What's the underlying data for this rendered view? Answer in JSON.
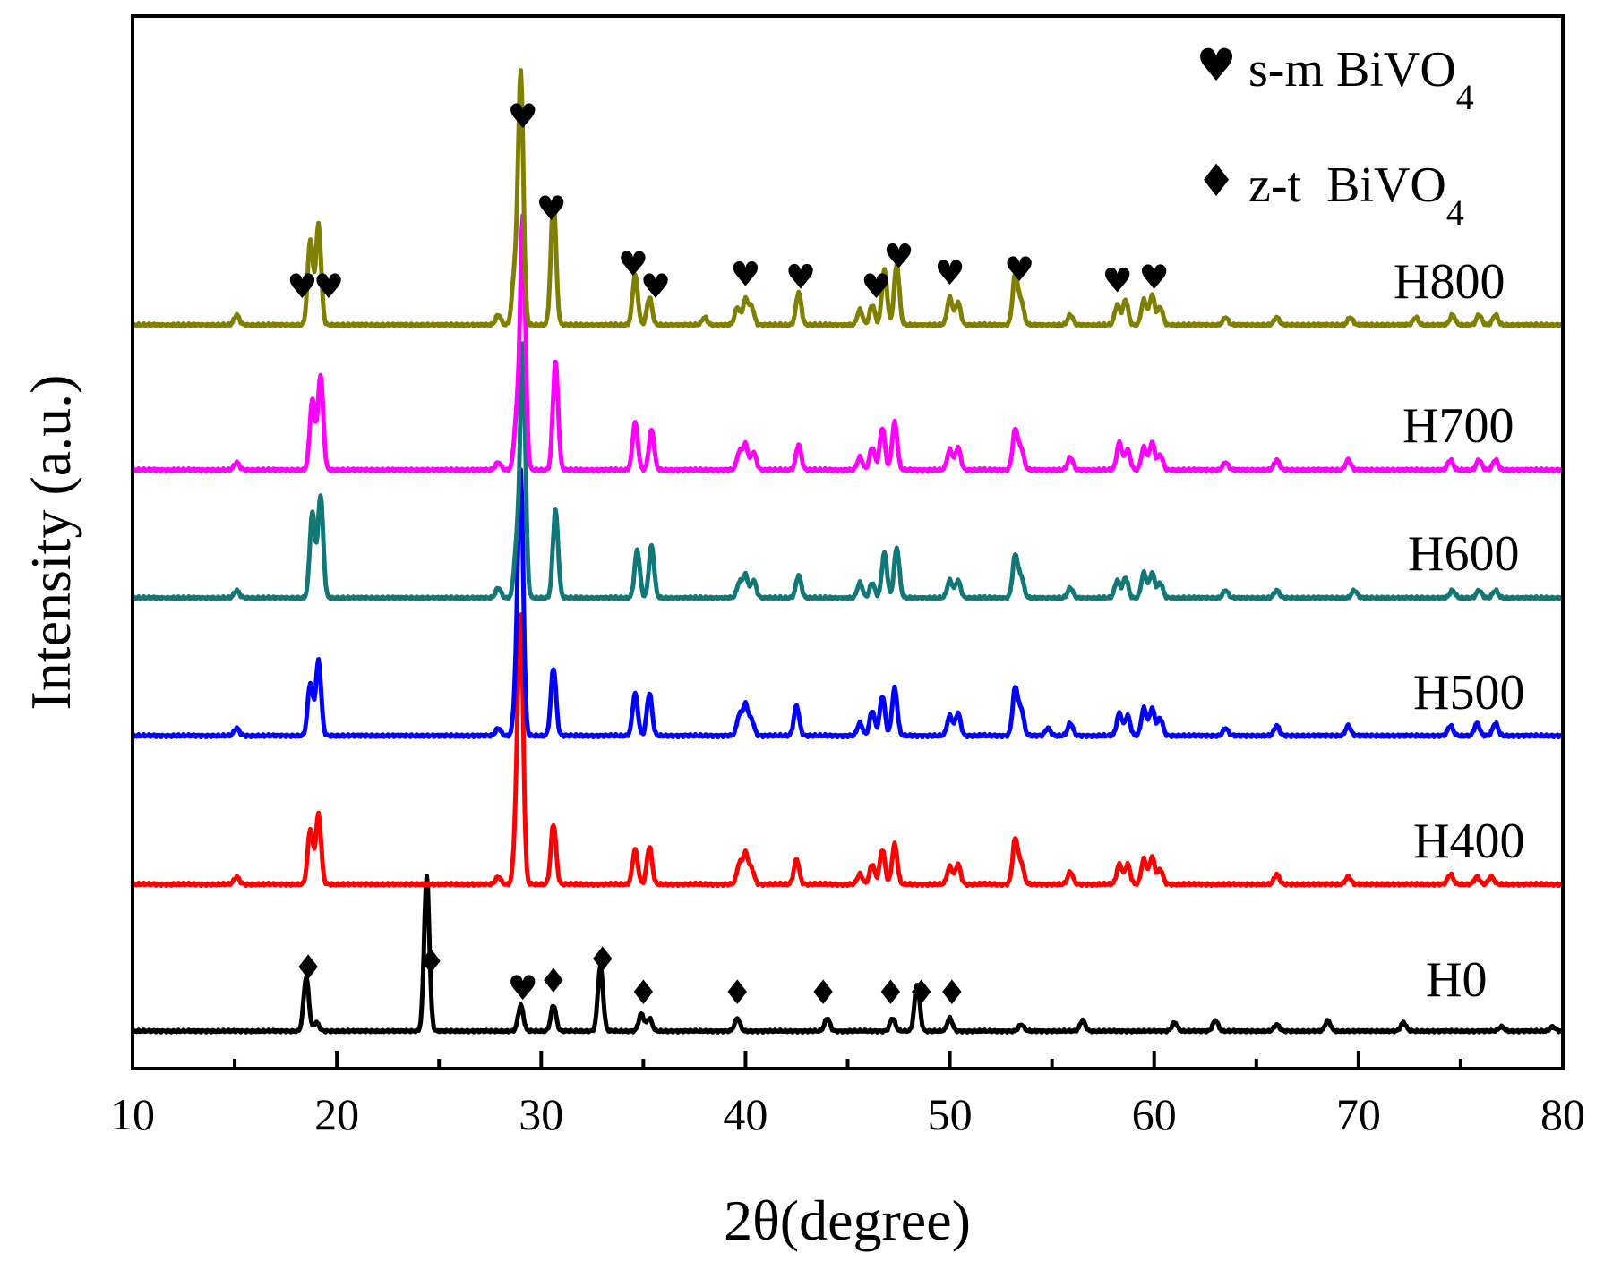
{
  "chart_data": {
    "type": "line",
    "title": "",
    "xlabel": "2θ(degree)",
    "ylabel": "Intensity (a.u.)",
    "xlim": [
      10,
      80
    ],
    "xticks": [
      10,
      20,
      30,
      40,
      50,
      60,
      70,
      80
    ],
    "xtick_labels": [
      "10",
      "20",
      "30",
      "40",
      "50",
      "60",
      "70",
      "80"
    ],
    "grid": false,
    "legend": {
      "position": "top-right",
      "entries": [
        {
          "symbol": "♥",
          "label": "s-m BiVO",
          "subscript": "4"
        },
        {
          "symbol": "♦",
          "label": "z-t  BiVO",
          "subscript": "4"
        }
      ]
    },
    "peak_width": 0.18,
    "series": [
      {
        "name": "H0",
        "color": "#000000",
        "peaks": [
          [
            18.5,
            0.25
          ],
          [
            19.0,
            0.04
          ],
          [
            24.4,
            0.72
          ],
          [
            29.0,
            0.12
          ],
          [
            30.6,
            0.12
          ],
          [
            32.9,
            0.3
          ],
          [
            34.9,
            0.08
          ],
          [
            35.3,
            0.06
          ],
          [
            39.6,
            0.06
          ],
          [
            44.0,
            0.06
          ],
          [
            47.2,
            0.06
          ],
          [
            48.4,
            0.22
          ],
          [
            50.0,
            0.06
          ],
          [
            53.5,
            0.03
          ],
          [
            56.5,
            0.05
          ],
          [
            61.0,
            0.04
          ],
          [
            63.0,
            0.05
          ],
          [
            66.0,
            0.03
          ],
          [
            68.5,
            0.05
          ],
          [
            72.2,
            0.04
          ],
          [
            77.0,
            0.02
          ],
          [
            79.5,
            0.02
          ]
        ],
        "markers": [
          {
            "x": 18.6,
            "symbol": "♦"
          },
          {
            "x": 24.6,
            "symbol": "♦"
          },
          {
            "x": 29.1,
            "symbol": "♥"
          },
          {
            "x": 30.6,
            "symbol": "♦"
          },
          {
            "x": 33.0,
            "symbol": "♦"
          },
          {
            "x": 35.0,
            "symbol": "♦"
          },
          {
            "x": 39.6,
            "symbol": "♦"
          },
          {
            "x": 43.8,
            "symbol": "♦"
          },
          {
            "x": 47.1,
            "symbol": "♦"
          },
          {
            "x": 48.6,
            "symbol": "♦"
          },
          {
            "x": 50.1,
            "symbol": "♦"
          }
        ]
      },
      {
        "name": "H400",
        "color": "#ff0000",
        "peaks": [
          [
            15.1,
            0.03
          ],
          [
            18.7,
            0.22
          ],
          [
            19.1,
            0.28
          ],
          [
            27.9,
            0.03
          ],
          [
            28.8,
            0.25
          ],
          [
            29.0,
            1.0
          ],
          [
            30.6,
            0.24
          ],
          [
            34.6,
            0.14
          ],
          [
            35.3,
            0.15
          ],
          [
            39.7,
            0.08
          ],
          [
            40.0,
            0.12
          ],
          [
            40.3,
            0.06
          ],
          [
            42.5,
            0.1
          ],
          [
            45.6,
            0.04
          ],
          [
            46.2,
            0.08
          ],
          [
            46.7,
            0.14
          ],
          [
            47.3,
            0.16
          ],
          [
            50.0,
            0.07
          ],
          [
            50.4,
            0.08
          ],
          [
            53.2,
            0.18
          ],
          [
            53.5,
            0.08
          ],
          [
            55.9,
            0.05
          ],
          [
            58.3,
            0.08
          ],
          [
            58.7,
            0.08
          ],
          [
            59.5,
            0.1
          ],
          [
            59.9,
            0.11
          ],
          [
            60.3,
            0.06
          ],
          [
            66.0,
            0.04
          ],
          [
            69.5,
            0.03
          ],
          [
            74.5,
            0.04
          ],
          [
            75.8,
            0.03
          ],
          [
            76.5,
            0.03
          ]
        ],
        "markers": []
      },
      {
        "name": "H500",
        "color": "#0000ff",
        "peaks": [
          [
            15.1,
            0.03
          ],
          [
            18.7,
            0.21
          ],
          [
            19.1,
            0.3
          ],
          [
            27.9,
            0.03
          ],
          [
            28.8,
            0.2
          ],
          [
            29.0,
            1.0
          ],
          [
            30.6,
            0.27
          ],
          [
            34.6,
            0.17
          ],
          [
            35.3,
            0.17
          ],
          [
            39.7,
            0.08
          ],
          [
            40.0,
            0.12
          ],
          [
            40.3,
            0.06
          ],
          [
            42.5,
            0.12
          ],
          [
            45.6,
            0.05
          ],
          [
            46.2,
            0.1
          ],
          [
            46.7,
            0.16
          ],
          [
            47.3,
            0.19
          ],
          [
            50.0,
            0.08
          ],
          [
            50.4,
            0.09
          ],
          [
            53.2,
            0.19
          ],
          [
            53.5,
            0.1
          ],
          [
            54.8,
            0.03
          ],
          [
            55.9,
            0.05
          ],
          [
            58.3,
            0.09
          ],
          [
            58.7,
            0.08
          ],
          [
            59.5,
            0.11
          ],
          [
            59.9,
            0.11
          ],
          [
            60.3,
            0.07
          ],
          [
            63.5,
            0.03
          ],
          [
            66.0,
            0.04
          ],
          [
            69.5,
            0.04
          ],
          [
            74.5,
            0.04
          ],
          [
            75.8,
            0.05
          ],
          [
            76.7,
            0.05
          ]
        ],
        "markers": []
      },
      {
        "name": "H600",
        "color": "#117777",
        "peaks": [
          [
            15.1,
            0.03
          ],
          [
            18.8,
            0.34
          ],
          [
            19.2,
            0.41
          ],
          [
            27.9,
            0.04
          ],
          [
            28.8,
            0.2
          ],
          [
            29.1,
            1.0
          ],
          [
            30.7,
            0.35
          ],
          [
            34.7,
            0.19
          ],
          [
            35.4,
            0.21
          ],
          [
            39.7,
            0.06
          ],
          [
            40.0,
            0.09
          ],
          [
            40.4,
            0.07
          ],
          [
            42.6,
            0.09
          ],
          [
            45.6,
            0.06
          ],
          [
            46.2,
            0.06
          ],
          [
            46.8,
            0.18
          ],
          [
            47.4,
            0.2
          ],
          [
            50.0,
            0.07
          ],
          [
            50.4,
            0.07
          ],
          [
            53.2,
            0.17
          ],
          [
            53.5,
            0.08
          ],
          [
            55.9,
            0.04
          ],
          [
            58.2,
            0.07
          ],
          [
            58.6,
            0.08
          ],
          [
            59.5,
            0.1
          ],
          [
            59.9,
            0.1
          ],
          [
            60.3,
            0.06
          ],
          [
            63.5,
            0.03
          ],
          [
            66.0,
            0.03
          ],
          [
            69.8,
            0.03
          ],
          [
            74.6,
            0.03
          ],
          [
            75.9,
            0.03
          ],
          [
            76.7,
            0.03
          ]
        ],
        "markers": []
      },
      {
        "name": "H700",
        "color": "#ff00ff",
        "peaks": [
          [
            15.1,
            0.03
          ],
          [
            18.8,
            0.28
          ],
          [
            19.2,
            0.38
          ],
          [
            27.9,
            0.03
          ],
          [
            28.8,
            0.2
          ],
          [
            29.1,
            1.0
          ],
          [
            30.7,
            0.43
          ],
          [
            34.6,
            0.19
          ],
          [
            35.4,
            0.16
          ],
          [
            39.7,
            0.07
          ],
          [
            40.0,
            0.1
          ],
          [
            40.4,
            0.07
          ],
          [
            42.6,
            0.1
          ],
          [
            45.6,
            0.05
          ],
          [
            46.2,
            0.09
          ],
          [
            46.7,
            0.17
          ],
          [
            47.3,
            0.19
          ],
          [
            50.0,
            0.08
          ],
          [
            50.4,
            0.09
          ],
          [
            53.2,
            0.16
          ],
          [
            53.5,
            0.08
          ],
          [
            55.9,
            0.05
          ],
          [
            58.3,
            0.11
          ],
          [
            58.7,
            0.08
          ],
          [
            59.5,
            0.09
          ],
          [
            59.9,
            0.11
          ],
          [
            60.3,
            0.06
          ],
          [
            63.5,
            0.03
          ],
          [
            66.0,
            0.04
          ],
          [
            69.5,
            0.04
          ],
          [
            74.5,
            0.04
          ],
          [
            75.9,
            0.04
          ],
          [
            76.7,
            0.04
          ]
        ],
        "markers": []
      },
      {
        "name": "H800",
        "color": "#808000",
        "peaks": [
          [
            15.1,
            0.04
          ],
          [
            18.7,
            0.34
          ],
          [
            19.1,
            0.4
          ],
          [
            27.9,
            0.04
          ],
          [
            28.7,
            0.2
          ],
          [
            29.0,
            1.0
          ],
          [
            30.6,
            0.5
          ],
          [
            34.6,
            0.2
          ],
          [
            35.3,
            0.11
          ],
          [
            38.0,
            0.03
          ],
          [
            39.6,
            0.07
          ],
          [
            40.0,
            0.1
          ],
          [
            40.3,
            0.07
          ],
          [
            42.6,
            0.13
          ],
          [
            45.6,
            0.06
          ],
          [
            46.2,
            0.08
          ],
          [
            46.8,
            0.22
          ],
          [
            47.4,
            0.24
          ],
          [
            50.0,
            0.11
          ],
          [
            50.4,
            0.09
          ],
          [
            53.2,
            0.2
          ],
          [
            53.5,
            0.09
          ],
          [
            55.9,
            0.04
          ],
          [
            58.2,
            0.08
          ],
          [
            58.6,
            0.1
          ],
          [
            59.5,
            0.1
          ],
          [
            59.9,
            0.12
          ],
          [
            60.3,
            0.07
          ],
          [
            63.5,
            0.03
          ],
          [
            66.0,
            0.03
          ],
          [
            69.6,
            0.03
          ],
          [
            72.8,
            0.03
          ],
          [
            74.6,
            0.04
          ],
          [
            75.9,
            0.04
          ],
          [
            76.7,
            0.04
          ]
        ],
        "markers": [
          {
            "x": 18.3,
            "symbol": "♥"
          },
          {
            "x": 19.6,
            "symbol": "♥"
          },
          {
            "x": 29.1,
            "symbol": "♥"
          },
          {
            "x": 30.5,
            "symbol": "♥"
          },
          {
            "x": 34.5,
            "symbol": "♥"
          },
          {
            "x": 35.6,
            "symbol": "♥"
          },
          {
            "x": 40.0,
            "symbol": "♥"
          },
          {
            "x": 42.7,
            "symbol": "♥"
          },
          {
            "x": 46.4,
            "symbol": "♥"
          },
          {
            "x": 47.5,
            "symbol": "♥"
          },
          {
            "x": 50.0,
            "symbol": "♥"
          },
          {
            "x": 53.4,
            "symbol": "♥"
          },
          {
            "x": 58.2,
            "symbol": "♥"
          },
          {
            "x": 60.0,
            "symbol": "♥"
          }
        ]
      }
    ]
  }
}
